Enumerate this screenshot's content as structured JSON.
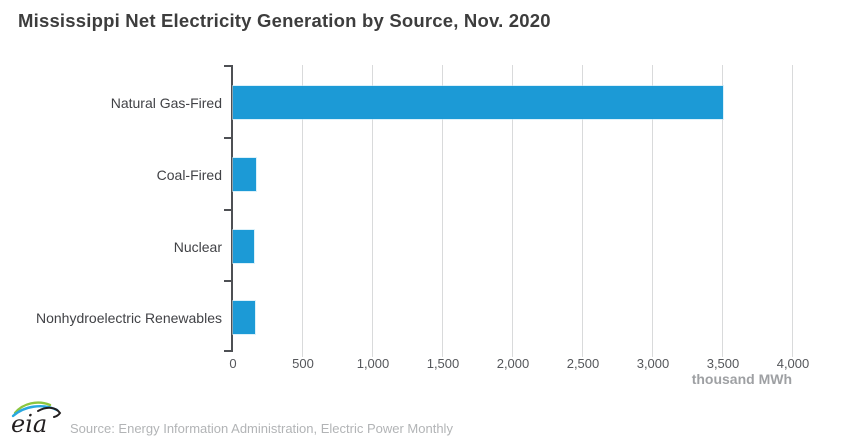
{
  "header": {
    "title": "Mississippi Net Electricity Generation by Source, Nov. 2020"
  },
  "chart_data": {
    "type": "bar",
    "orientation": "horizontal",
    "title": "Mississippi Net Electricity Generation by Source, Nov. 2020",
    "categories": [
      "Natural Gas-Fired",
      "Coal-Fired",
      "Nuclear",
      "Nonhydroelectric Renewables"
    ],
    "values": [
      3500,
      165,
      150,
      155
    ],
    "xlabel": "thousand MWh",
    "ylabel": "",
    "xlim": [
      0,
      4000
    ],
    "xticks": [
      0,
      500,
      1000,
      1500,
      2000,
      2500,
      3000,
      3500,
      4000
    ],
    "xtick_labels": [
      "0",
      "500",
      "1,000",
      "1,500",
      "2,000",
      "2,500",
      "3,000",
      "3,500",
      "4,000"
    ],
    "grid": true,
    "legend": "none",
    "bar_color": "#1c9ad6"
  },
  "colors": {
    "bar": "#1c9ad6",
    "axis": "#4e5054",
    "gridline": "#d9dadb",
    "title_text": "#3d3d3d",
    "category_text": "#414246",
    "tick_text": "#55575b",
    "unit_text": "#9ea0a3",
    "source_text": "#b2b4b6",
    "logo_green": "#8cc63e",
    "logo_blue": "#29a8e0",
    "logo_dark": "#231f20"
  },
  "footer": {
    "logo_text": "eia",
    "logo_name": "eia-logo",
    "source": "Source: Energy Information Administration, Electric Power Monthly"
  }
}
